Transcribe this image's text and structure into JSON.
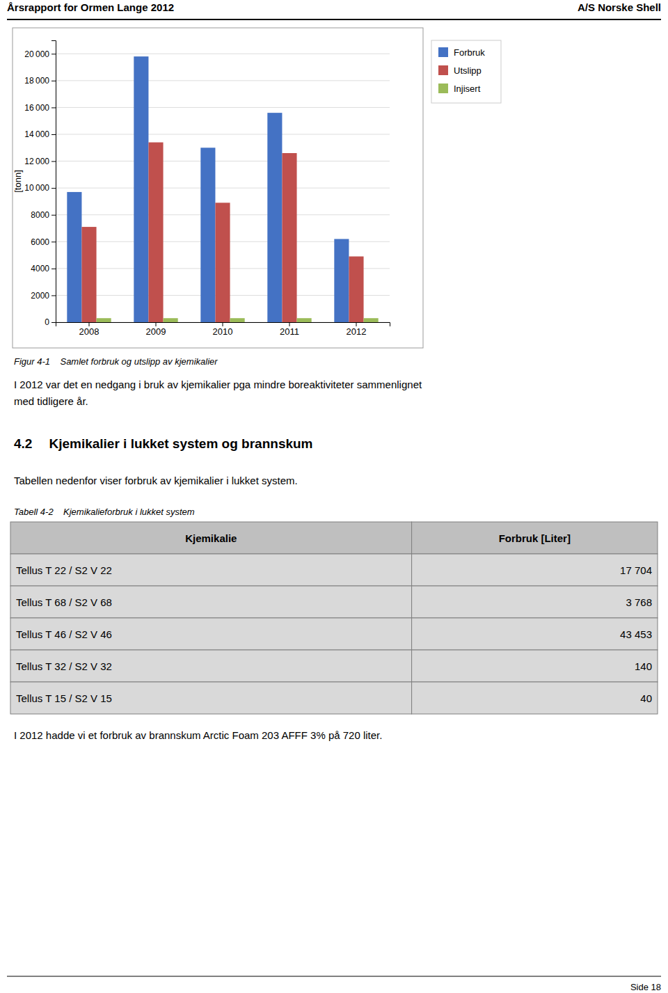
{
  "header_left": "Årsrapport for Ormen Lange 2012",
  "header_right": "A/S Norske Shell",
  "footer_right": "Side 18",
  "chart_data": {
    "type": "bar",
    "categories": [
      "2008",
      "2009",
      "2010",
      "2011",
      "2012"
    ],
    "series": [
      {
        "name": "Forbruk",
        "color": "#4472C4",
        "values": [
          9700,
          19800,
          13000,
          15600,
          6200
        ]
      },
      {
        "name": "Utslipp",
        "color": "#C0504D",
        "values": [
          7100,
          13400,
          8900,
          12600,
          4900
        ]
      },
      {
        "name": "Injisert",
        "color": "#9BBB59",
        "values": [
          300,
          300,
          300,
          300,
          300
        ]
      }
    ],
    "ylabel": "[tonn]",
    "ylim": [
      0,
      21000
    ],
    "yticks": [
      0,
      2000,
      4000,
      6000,
      8000,
      {
        "value": 10000,
        "label": "10 000"
      },
      {
        "value": 12000,
        "label": "12 000"
      },
      {
        "value": 14000,
        "label": "14 000"
      },
      {
        "value": 16000,
        "label": "16 000"
      },
      {
        "value": 18000,
        "label": "18 000"
      },
      {
        "value": 20000,
        "label": "20 000"
      }
    ],
    "grid": true,
    "legend": "right"
  },
  "figure_caption": "Figur 4-1    Samlet forbruk og utslipp av kjemikalier",
  "paragraph1": "I 2012 var det en nedgang i bruk av kjemikalier pga mindre boreaktiviteter sammenlignet\nmed tidligere år.",
  "section_number": "4.2",
  "section_title": "Kjemikalier i lukket system og brannskum",
  "paragraph2": "Tabellen nedenfor viser forbruk av kjemikalier i lukket system.",
  "table": {
    "caption": "Tabell 4-2    Kjemikalieforbruk i lukket system",
    "headers": [
      "Kjemikalie",
      "Forbruk [Liter]"
    ],
    "rows": [
      [
        "Tellus T 22 / S2 V 22",
        "17 704"
      ],
      [
        "Tellus T 68 / S2 V 68",
        "3 768"
      ],
      [
        "Tellus T 46 / S2 V 46",
        "43 453"
      ],
      [
        "Tellus T 32 / S2 V 32",
        "140"
      ],
      [
        "Tellus T 15 / S2 V 15",
        "40"
      ]
    ],
    "header_color": "#BFBFBF",
    "row_color": "#D9D9D9",
    "border_color": "#7F7F7F"
  },
  "paragraph3": "I 2012 hadde vi et forbruk av brannskum Arctic Foam 203 AFFF 3% på 720 liter."
}
